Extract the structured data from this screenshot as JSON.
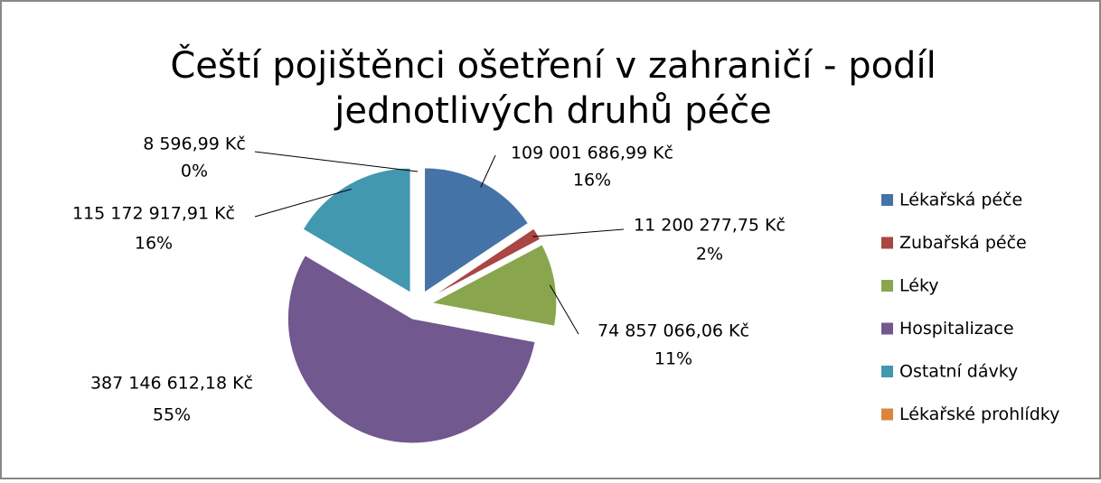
{
  "chart_data": {
    "type": "pie",
    "title": "Čeští pojištěnci ošetření v zahraničí - podíl",
    "subtitle": "jednotlivých druhů péče",
    "categories": [
      "Lékařská péče",
      "Zubařská péče",
      "Léky",
      "Hospitalizace",
      "Ostatní dávky",
      "Lékařské prohlídky"
    ],
    "values": [
      109001686.99,
      11200277.75,
      74857066.06,
      387146612.18,
      115172917.91,
      8596.99
    ],
    "value_labels": [
      "109 001 686,99 Kč",
      "11 200 277,75 Kč",
      "74 857 066,06 Kč",
      "387 146 612,18 Kč",
      "115 172 917,91 Kč",
      "8 596,99 Kč"
    ],
    "percent_labels": [
      "16%",
      "2%",
      "11%",
      "55%",
      "16%",
      "0%"
    ],
    "colors": [
      "#4572a7",
      "#aa4643",
      "#89a54e",
      "#71588f",
      "#4198af",
      "#db843d"
    ],
    "legend": "right"
  }
}
